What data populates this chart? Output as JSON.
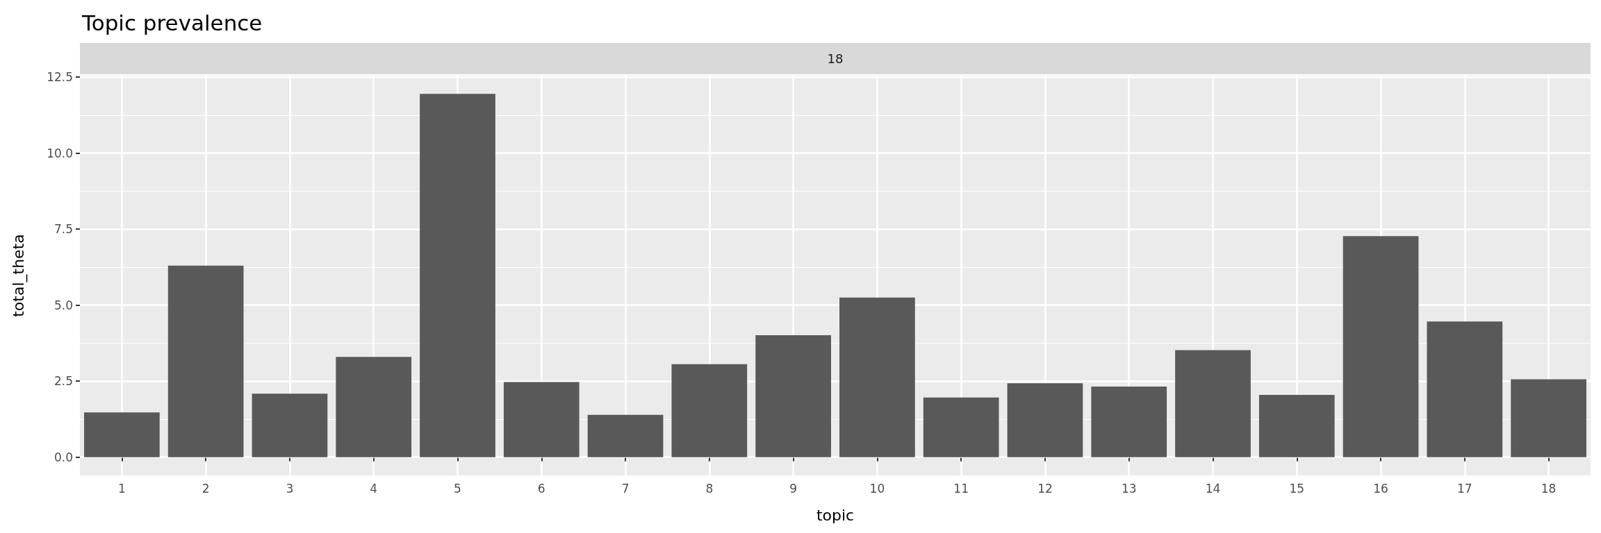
{
  "chart_data": {
    "type": "bar",
    "title": "Topic prevalence",
    "xlabel": "topic",
    "ylabel": "total_theta",
    "annotations": [
      "18"
    ],
    "categories": [
      "1",
      "2",
      "3",
      "4",
      "5",
      "6",
      "7",
      "8",
      "9",
      "10",
      "11",
      "12",
      "13",
      "14",
      "15",
      "16",
      "17",
      "18"
    ],
    "values": [
      1.47,
      6.3,
      2.09,
      3.3,
      11.95,
      2.47,
      1.39,
      3.06,
      4.01,
      5.25,
      1.96,
      2.43,
      2.32,
      3.52,
      2.05,
      7.27,
      4.46,
      2.56
    ],
    "color": "#595959",
    "ylim": [
      -0.6,
      12.55
    ],
    "yticks": [
      {
        "value": 0,
        "label": "0.0"
      },
      2.5,
      {
        "value": 5,
        "label": "5.0"
      },
      7.5,
      {
        "value": 10,
        "label": "10.0"
      },
      12.5
    ],
    "grid": true
  }
}
